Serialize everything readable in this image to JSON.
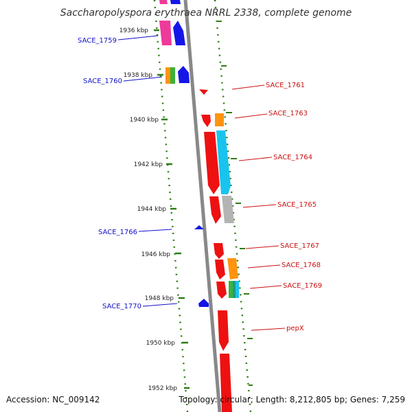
{
  "title": "Saccharopolyspora erythraea NRRL 2338, complete genome",
  "accession": "Accession: NC_009142",
  "topology": "Topology: circular; Length: 8,212,805 bp; Genes: 7,259",
  "colors": {
    "backbone": "#888888",
    "tick": "#2d7d12",
    "reverse_label": "#1010c8",
    "forward_label": "#cc1010",
    "red": "#ee1111",
    "blue": "#1515e8",
    "magenta": "#ee3a9a",
    "orange": "#ff9410",
    "green": "#39b339",
    "cyan": "#18c4ee",
    "grey": "#b4b4b4",
    "teal": "#1a9a8a"
  },
  "kbp_labels": [
    "1936 kbp",
    "1938 kbp",
    "1940 kbp",
    "1942 kbp",
    "1944 kbp",
    "1946 kbp",
    "1948 kbp",
    "1950 kbp",
    "1952 kbp"
  ],
  "genes": {
    "reverse": [
      "SACE_1759",
      "SACE_1760",
      "SACE_1766",
      "SACE_1770"
    ],
    "forward": [
      "SACE_1761",
      "SACE_1763",
      "SACE_1764",
      "SACE_1765",
      "SACE_1767",
      "SACE_1768",
      "SACE_1769",
      "pepX"
    ]
  }
}
